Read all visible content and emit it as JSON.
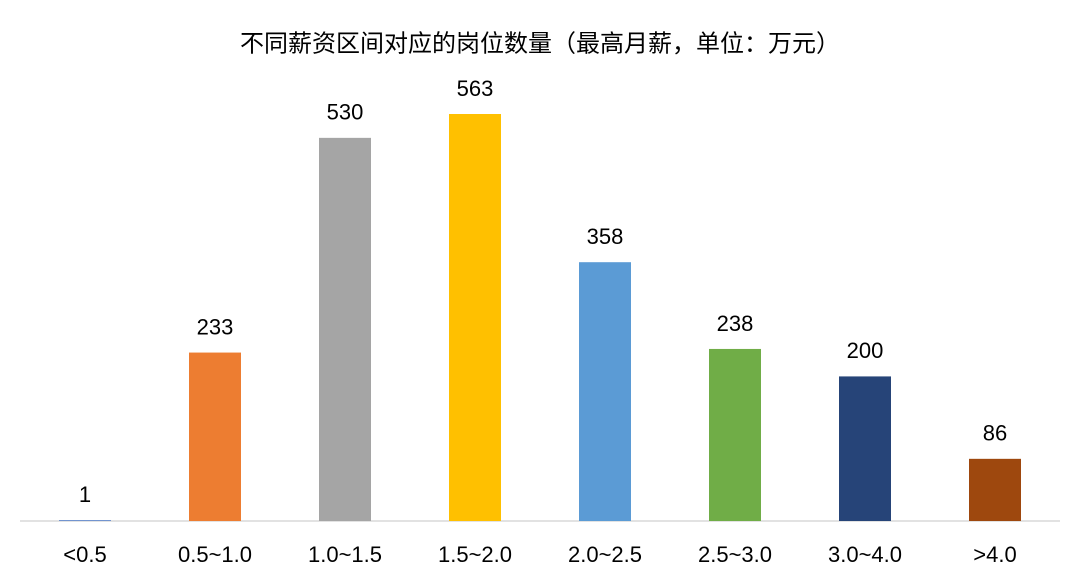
{
  "chart_data": {
    "type": "bar",
    "title": "不同薪资区间对应的岗位数量（最高月薪，单位：万元）",
    "categories": [
      "<0.5",
      "0.5~1.0",
      "1.0~1.5",
      "1.5~2.0",
      "2.0~2.5",
      "2.5~3.0",
      "3.0~4.0",
      ">4.0"
    ],
    "values": [
      1,
      233,
      530,
      563,
      358,
      238,
      200,
      86
    ],
    "colors": [
      "#4472c4",
      "#ed7d31",
      "#a5a5a5",
      "#ffc000",
      "#5b9bd5",
      "#70ad47",
      "#264478",
      "#9e480e"
    ]
  }
}
